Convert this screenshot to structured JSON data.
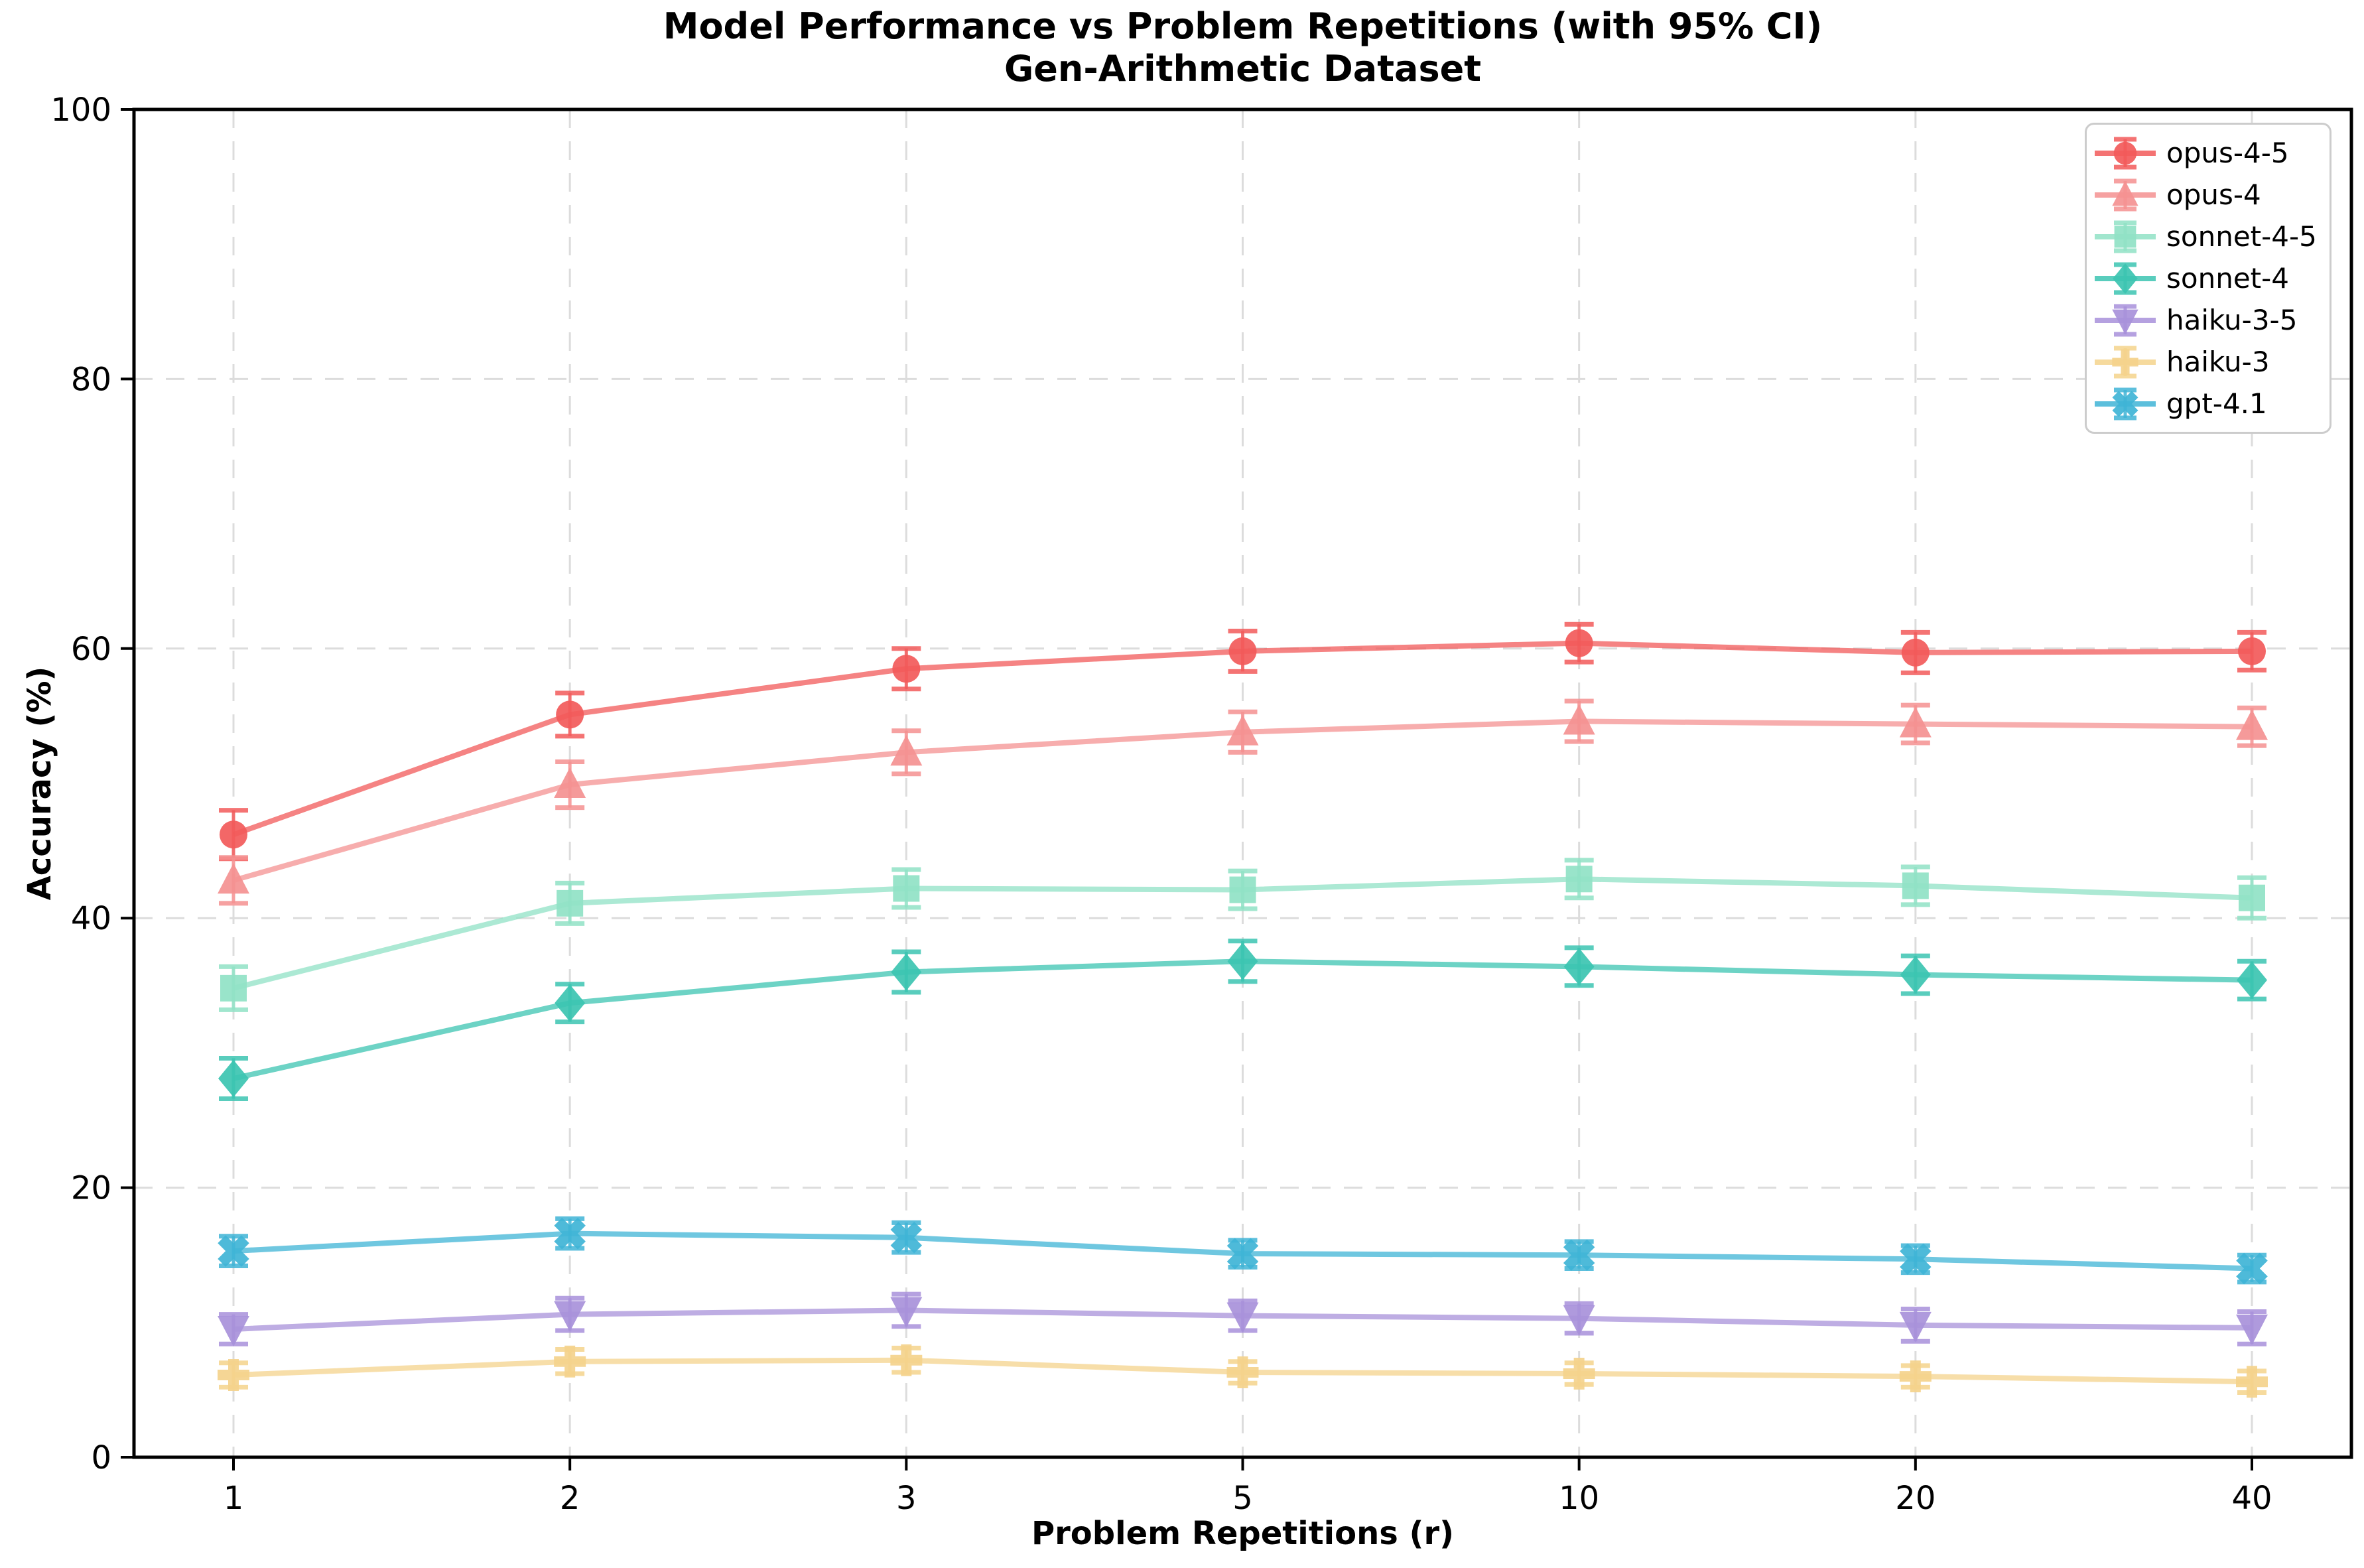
{
  "chart_data": {
    "type": "line",
    "title_lines": [
      "Model Performance vs Problem Repetitions (with 95% CI)",
      "Gen-Arithmetic Dataset"
    ],
    "xlabel": "Problem Repetitions (r)",
    "ylabel": "Accuracy (%)",
    "x_labels": [
      "1",
      "2",
      "3",
      "5",
      "10",
      "20",
      "40"
    ],
    "x_values": [
      1,
      2,
      3,
      5,
      10,
      20,
      40
    ],
    "ylim": [
      0,
      100
    ],
    "yticks": [
      0,
      20,
      40,
      60,
      80,
      100
    ],
    "grid": true,
    "grid_color": "#dcdcdc",
    "spine_color": "#000000",
    "background": "#ffffff",
    "legend_position": "upper right",
    "error_bar_type": "95% CI",
    "series": [
      {
        "name": "opus-4-5",
        "marker": "circle",
        "color": "#F25A5A",
        "values": [
          46.2,
          55.1,
          58.5,
          59.8,
          60.4,
          59.7,
          59.8
        ],
        "ci": [
          1.8,
          1.6,
          1.5,
          1.5,
          1.4,
          1.5,
          1.4
        ]
      },
      {
        "name": "opus-4",
        "marker": "triangle-up",
        "color": "#F49191",
        "values": [
          42.8,
          49.9,
          52.3,
          53.8,
          54.6,
          54.4,
          54.2
        ],
        "ci": [
          1.7,
          1.7,
          1.6,
          1.5,
          1.5,
          1.4,
          1.4
        ]
      },
      {
        "name": "sonnet-4-5",
        "marker": "square",
        "color": "#90E2C6",
        "values": [
          34.8,
          41.1,
          42.2,
          42.1,
          42.9,
          42.4,
          41.5
        ],
        "ci": [
          1.6,
          1.5,
          1.4,
          1.4,
          1.4,
          1.4,
          1.5
        ]
      },
      {
        "name": "sonnet-4",
        "marker": "diamond",
        "color": "#3CC4B1",
        "values": [
          28.1,
          33.7,
          36.0,
          36.8,
          36.4,
          35.8,
          35.4
        ],
        "ci": [
          1.5,
          1.4,
          1.5,
          1.5,
          1.4,
          1.4,
          1.4
        ]
      },
      {
        "name": "haiku-3-5",
        "marker": "triangle-down",
        "color": "#A891DA",
        "values": [
          9.5,
          10.6,
          10.9,
          10.5,
          10.3,
          9.8,
          9.6
        ],
        "ci": [
          1.1,
          1.2,
          1.2,
          1.1,
          1.1,
          1.2,
          1.2
        ]
      },
      {
        "name": "haiku-3",
        "marker": "plus",
        "color": "#F4D38C",
        "values": [
          6.1,
          7.1,
          7.2,
          6.3,
          6.2,
          6.0,
          5.6
        ],
        "ci": [
          0.9,
          0.9,
          0.9,
          0.8,
          0.8,
          0.8,
          0.8
        ]
      },
      {
        "name": "gpt-4.1",
        "marker": "x",
        "color": "#3FB4D6",
        "values": [
          15.3,
          16.6,
          16.3,
          15.1,
          15.0,
          14.7,
          14.0
        ],
        "ci": [
          1.1,
          1.1,
          1.1,
          1.0,
          1.0,
          1.0,
          1.0
        ]
      }
    ]
  }
}
